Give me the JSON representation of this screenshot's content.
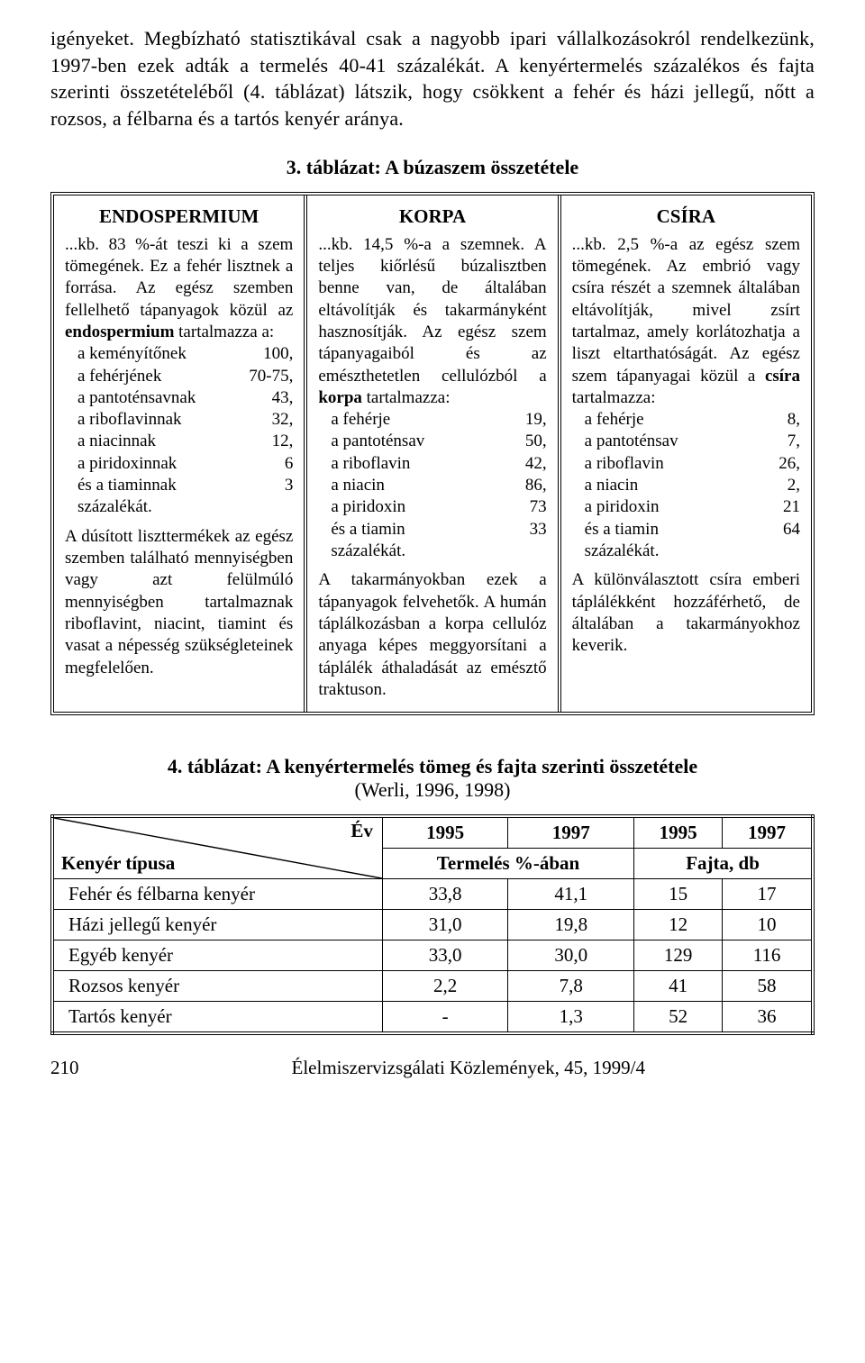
{
  "intro_para": "igényeket. Megbízható statisztikával csak a nagyobb ipari vállalkozásokról rendelkezünk, 1997-ben ezek adták a termelés 40-41 százalékát. A kenyértermelés százalékos és fajta szerinti összetételéből (4. táblázat) látszik, hogy csökkent a fehér és házi jellegű, nőtt a rozsos, a  félbarna és a tartós kenyér aránya.",
  "tbl3": {
    "title": "3. táblázat: A búzaszem összetétele",
    "cols": [
      {
        "head": "ENDOSPERMIUM",
        "pre1": "...kb. 83 %-át teszi ki a szem tömegének. Ez a fehér lisztnek a forrása. Az egész szemben fellelhető tápanyagok közül az ",
        "pre1_bold": "endospermium",
        "pre1_after": " tartalmazza a:",
        "items": [
          {
            "k": "a keményítőnek",
            "v": "100,"
          },
          {
            "k": "a fehérjének",
            "v": "70-75,"
          },
          {
            "k": "a pantoténsavnak",
            "v": "43,"
          },
          {
            "k": "a riboflavinnak",
            "v": "32,"
          },
          {
            "k": "a niacinnak",
            "v": "12,"
          },
          {
            "k": "a piridoxinnak",
            "v": "6"
          },
          {
            "k": "és a tiaminnak",
            "v": "3"
          }
        ],
        "mid": "százalékát.",
        "post": "A dúsított liszttermékek az egész szemben található mennyiségben vagy azt felülmúló mennyiségben tartalmaznak riboflavint, niacint, tiamint és vasat a népesség szükségleteinek megfelelően."
      },
      {
        "head": "KORPA",
        "pre1": "...kb. 14,5 %-a a szemnek. A teljes kiőrlésű búzalisztben benne van, de általában eltávolítják és takarmányként hasznosítják. Az egész szem tápanyagaiból és az emészthetetlen cellulózból a ",
        "pre1_bold": "korpa",
        "pre1_after": " tartalmazza:",
        "items": [
          {
            "k": "a fehérje",
            "v": "19,"
          },
          {
            "k": "a pantoténsav",
            "v": "50,"
          },
          {
            "k": "a riboflavin",
            "v": "42,"
          },
          {
            "k": "a niacin",
            "v": "86,"
          },
          {
            "k": "a piridoxin",
            "v": "73"
          },
          {
            "k": "és a tiamin",
            "v": "33"
          }
        ],
        "mid": "százalékát.",
        "post": "A takarmányokban ezek a tápanyagok felvehetők. A humán táplálkozásban a korpa cellulóz anyaga képes meggyorsítani a táplálék áthaladását az emésztő traktuson."
      },
      {
        "head": "CSÍRA",
        "pre1": "...kb. 2,5 %-a az egész szem tömegének. Az embrió vagy csíra részét a szemnek általában eltávolítják, mivel zsírt tartalmaz, amely korlátozhatja a liszt eltarthatóságát. Az egész szem tápanyagai közül a ",
        "pre1_bold": "csíra",
        "pre1_after": " tartalmazza:",
        "items": [
          {
            "k": "a fehérje",
            "v": "8,"
          },
          {
            "k": "a pantoténsav",
            "v": "7,"
          },
          {
            "k": "a riboflavin",
            "v": "26,"
          },
          {
            "k": "a niacin",
            "v": "2,"
          },
          {
            "k": "a piridoxin",
            "v": "21"
          },
          {
            "k": "és a tiamin",
            "v": "64"
          }
        ],
        "mid": "százalékát.",
        "post": "A különválasztott csíra emberi táplálékként hozzáférhető, de általában a takarmányokhoz keverik."
      }
    ]
  },
  "tbl4": {
    "title": "4. táblázat: A kenyértermelés tömeg és fajta szerinti összetétele",
    "subtitle": "(Werli, 1996, 1998)",
    "diag_top": "Év",
    "diag_bot": "Kenyér típusa",
    "year_heads": [
      "1995",
      "1997",
      "1995",
      "1997"
    ],
    "group_heads": [
      "Termelés %-ában",
      "Fajta, db"
    ],
    "rows": [
      {
        "name": "Fehér és félbarna kenyér",
        "c": [
          "33,8",
          "41,1",
          "15",
          "17"
        ]
      },
      {
        "name": "Házi jellegű kenyér",
        "c": [
          "31,0",
          "19,8",
          "12",
          "10"
        ]
      },
      {
        "name": "Egyéb kenyér",
        "c": [
          "33,0",
          "30,0",
          "129",
          "116"
        ]
      },
      {
        "name": "Rozsos kenyér",
        "c": [
          "2,2",
          "7,8",
          "41",
          "58"
        ]
      },
      {
        "name": "Tartós kenyér",
        "c": [
          "-",
          "1,3",
          "52",
          "36"
        ]
      }
    ]
  },
  "footer": {
    "page": "210",
    "journal": "Élelmiszervizsgálati Közlemények, 45, 1999/4"
  }
}
